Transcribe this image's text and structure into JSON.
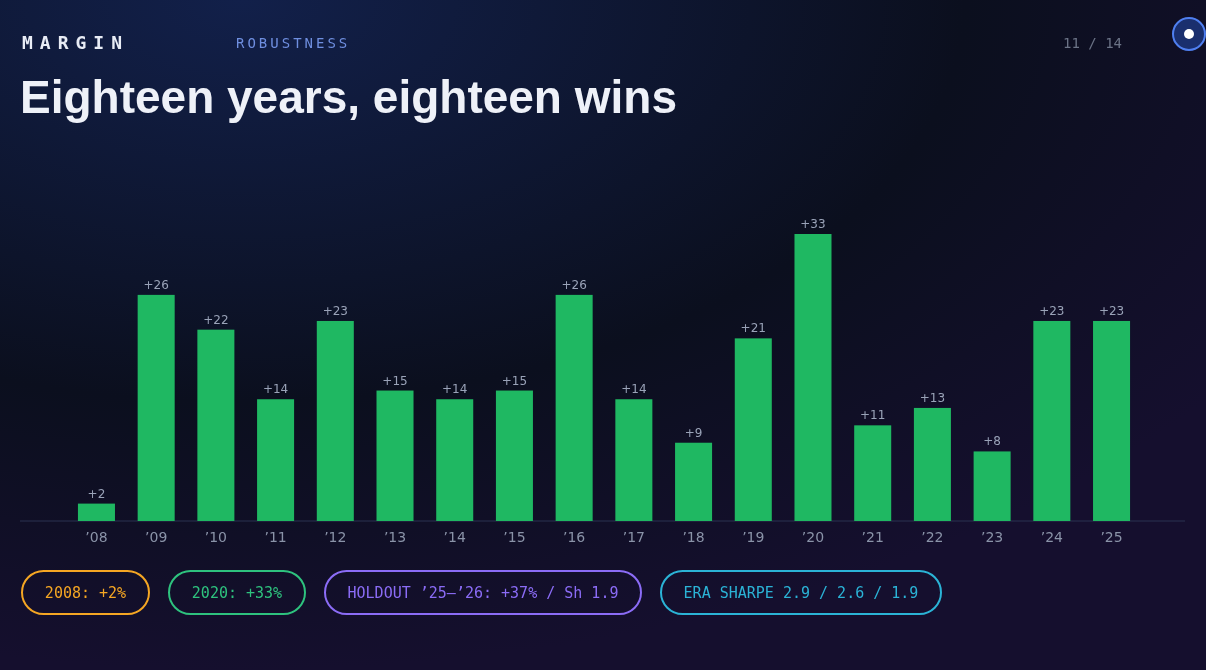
{
  "chart_data": {
    "type": "bar",
    "title": "Eighteen years, eighteen wins",
    "subtitle": "ROBUSTNESS",
    "categories": [
      "’08",
      "’09",
      "’10",
      "’11",
      "’12",
      "’13",
      "’14",
      "’15",
      "’16",
      "’17",
      "’18",
      "’19",
      "’20",
      "’21",
      "’22",
      "’23",
      "’24",
      "’25"
    ],
    "values": [
      2,
      26,
      22,
      14,
      23,
      15,
      14,
      15,
      26,
      14,
      9,
      21,
      33,
      11,
      13,
      8,
      23,
      23
    ],
    "value_labels": [
      "+2",
      "+26",
      "+22",
      "+14",
      "+23",
      "+15",
      "+14",
      "+15",
      "+26",
      "+14",
      "+9",
      "+21",
      "+33",
      "+11",
      "+13",
      "+8",
      "+23",
      "+23"
    ],
    "color": "#1fb862",
    "annotations": [
      "MARGIN",
      "11 / 14",
      "2008: +2%",
      "2020: +33%",
      "HOLDOUT ’25–’26: +37% / Sh 1.9",
      "ERA SHARPE 2.9 / 2.6 / 1.9"
    ]
  }
}
